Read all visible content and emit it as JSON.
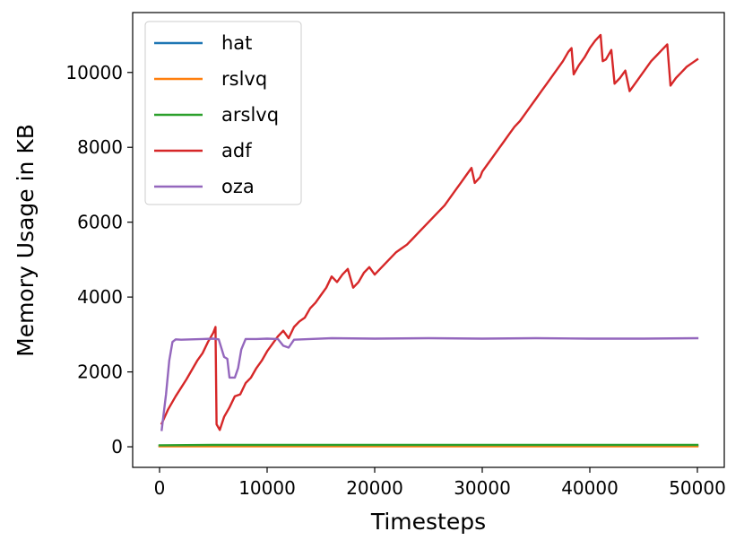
{
  "chart_data": {
    "type": "line",
    "xlabel": "Timesteps",
    "ylabel": "Memory Usage in KB",
    "xlim": [
      -2500,
      52500
    ],
    "ylim": [
      -550,
      11600
    ],
    "xticks": [
      0,
      10000,
      20000,
      30000,
      40000,
      50000
    ],
    "xtick_labels": [
      "0",
      "10000",
      "20000",
      "30000",
      "40000",
      "50000"
    ],
    "yticks": [
      0,
      2000,
      4000,
      6000,
      8000,
      10000
    ],
    "ytick_labels": [
      "0",
      "2000",
      "4000",
      "6000",
      "8000",
      "10000"
    ],
    "grid": false,
    "legend_position": "top-left",
    "series": [
      {
        "name": "hat",
        "color": "#1f77b4",
        "points": [
          [
            0,
            20
          ],
          [
            5000,
            25
          ],
          [
            10000,
            25
          ],
          [
            20000,
            25
          ],
          [
            30000,
            25
          ],
          [
            40000,
            25
          ],
          [
            50000,
            25
          ]
        ]
      },
      {
        "name": "rslvq",
        "color": "#ff7f0e",
        "points": [
          [
            0,
            10
          ],
          [
            5000,
            10
          ],
          [
            10000,
            10
          ],
          [
            20000,
            10
          ],
          [
            30000,
            10
          ],
          [
            40000,
            10
          ],
          [
            50000,
            10
          ]
        ]
      },
      {
        "name": "arslvq",
        "color": "#2ca02c",
        "points": [
          [
            0,
            40
          ],
          [
            5000,
            50
          ],
          [
            10000,
            50
          ],
          [
            20000,
            50
          ],
          [
            30000,
            50
          ],
          [
            40000,
            50
          ],
          [
            50000,
            50
          ]
        ]
      },
      {
        "name": "adf",
        "color": "#d62728",
        "points": [
          [
            200,
            620
          ],
          [
            800,
            1000
          ],
          [
            1500,
            1350
          ],
          [
            2500,
            1800
          ],
          [
            3000,
            2050
          ],
          [
            3500,
            2300
          ],
          [
            4000,
            2500
          ],
          [
            4500,
            2800
          ],
          [
            5000,
            3050
          ],
          [
            5200,
            3200
          ],
          [
            5300,
            600
          ],
          [
            5600,
            450
          ],
          [
            6000,
            800
          ],
          [
            6500,
            1050
          ],
          [
            7000,
            1350
          ],
          [
            7500,
            1400
          ],
          [
            8000,
            1700
          ],
          [
            8500,
            1850
          ],
          [
            9000,
            2100
          ],
          [
            9500,
            2300
          ],
          [
            10000,
            2550
          ],
          [
            10500,
            2750
          ],
          [
            11000,
            2950
          ],
          [
            11500,
            3100
          ],
          [
            12000,
            2900
          ],
          [
            12500,
            3200
          ],
          [
            13000,
            3350
          ],
          [
            13500,
            3450
          ],
          [
            14000,
            3700
          ],
          [
            14500,
            3850
          ],
          [
            15000,
            4050
          ],
          [
            15500,
            4250
          ],
          [
            16000,
            4550
          ],
          [
            16500,
            4400
          ],
          [
            17000,
            4600
          ],
          [
            17500,
            4750
          ],
          [
            18000,
            4250
          ],
          [
            18500,
            4400
          ],
          [
            19000,
            4650
          ],
          [
            19500,
            4800
          ],
          [
            20000,
            4600
          ],
          [
            20500,
            4750
          ],
          [
            21000,
            4900
          ],
          [
            21500,
            5050
          ],
          [
            22000,
            5200
          ],
          [
            22500,
            5300
          ],
          [
            23000,
            5400
          ],
          [
            23500,
            5550
          ],
          [
            24000,
            5700
          ],
          [
            24500,
            5850
          ],
          [
            25000,
            6000
          ],
          [
            25500,
            6150
          ],
          [
            26000,
            6300
          ],
          [
            26500,
            6450
          ],
          [
            27000,
            6650
          ],
          [
            27500,
            6850
          ],
          [
            28000,
            7050
          ],
          [
            28500,
            7250
          ],
          [
            29000,
            7450
          ],
          [
            29300,
            7050
          ],
          [
            29800,
            7200
          ],
          [
            30000,
            7350
          ],
          [
            30500,
            7550
          ],
          [
            31000,
            7750
          ],
          [
            31500,
            7950
          ],
          [
            32000,
            8150
          ],
          [
            32500,
            8350
          ],
          [
            33000,
            8550
          ],
          [
            33500,
            8700
          ],
          [
            34000,
            8900
          ],
          [
            34500,
            9100
          ],
          [
            35000,
            9300
          ],
          [
            35500,
            9500
          ],
          [
            36000,
            9700
          ],
          [
            36500,
            9900
          ],
          [
            37000,
            10100
          ],
          [
            37500,
            10300
          ],
          [
            38000,
            10550
          ],
          [
            38300,
            10650
          ],
          [
            38500,
            9950
          ],
          [
            39000,
            10200
          ],
          [
            39500,
            10400
          ],
          [
            40000,
            10650
          ],
          [
            40500,
            10850
          ],
          [
            41000,
            11000
          ],
          [
            41200,
            10300
          ],
          [
            41500,
            10350
          ],
          [
            42000,
            10600
          ],
          [
            42300,
            9700
          ],
          [
            42800,
            9850
          ],
          [
            43300,
            10050
          ],
          [
            43700,
            9500
          ],
          [
            44200,
            9700
          ],
          [
            44700,
            9900
          ],
          [
            45200,
            10100
          ],
          [
            45700,
            10300
          ],
          [
            46200,
            10450
          ],
          [
            46700,
            10600
          ],
          [
            47200,
            10750
          ],
          [
            47500,
            9650
          ],
          [
            48000,
            9850
          ],
          [
            48500,
            10000
          ],
          [
            49000,
            10150
          ],
          [
            49500,
            10250
          ],
          [
            50000,
            10350
          ]
        ]
      },
      {
        "name": "oza",
        "color": "#9467bd",
        "points": [
          [
            200,
            450
          ],
          [
            600,
            1400
          ],
          [
            900,
            2300
          ],
          [
            1200,
            2800
          ],
          [
            1500,
            2870
          ],
          [
            2000,
            2860
          ],
          [
            3000,
            2870
          ],
          [
            4000,
            2880
          ],
          [
            5000,
            2890
          ],
          [
            5500,
            2870
          ],
          [
            6000,
            2400
          ],
          [
            6300,
            2350
          ],
          [
            6500,
            1850
          ],
          [
            7000,
            1850
          ],
          [
            7300,
            2100
          ],
          [
            7600,
            2600
          ],
          [
            8000,
            2880
          ],
          [
            9000,
            2880
          ],
          [
            10000,
            2890
          ],
          [
            11000,
            2880
          ],
          [
            11500,
            2700
          ],
          [
            12000,
            2650
          ],
          [
            12500,
            2860
          ],
          [
            14000,
            2880
          ],
          [
            16000,
            2900
          ],
          [
            20000,
            2890
          ],
          [
            25000,
            2900
          ],
          [
            30000,
            2890
          ],
          [
            35000,
            2900
          ],
          [
            40000,
            2890
          ],
          [
            45000,
            2890
          ],
          [
            50000,
            2900
          ]
        ]
      }
    ]
  }
}
